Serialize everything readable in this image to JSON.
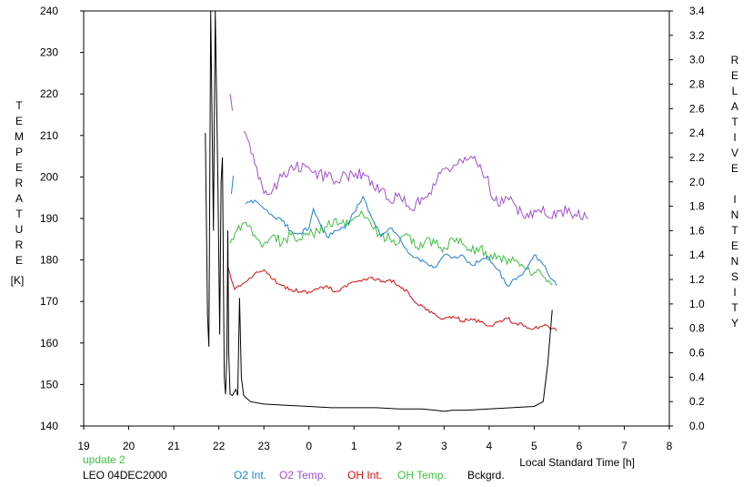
{
  "chart_data": {
    "type": "line",
    "title": "",
    "ylabel_left": "TEMPERATURE",
    "ylabel_left_unit": "[K]",
    "ylabel_right": "RELATIVE INTENSITY",
    "xlabel": "Local Standard Time [h]",
    "x_ticks": [
      19,
      20,
      21,
      22,
      23,
      0,
      1,
      2,
      3,
      4,
      5,
      6,
      7,
      8
    ],
    "x_range_hours_continuous": [
      19,
      32
    ],
    "y_left_ticks": [
      140,
      150,
      160,
      170,
      180,
      190,
      200,
      210,
      220,
      230,
      240
    ],
    "y_left_range": [
      140,
      240
    ],
    "y_right_ticks": [
      "0.0",
      "0.2",
      "0.4",
      "0.6",
      "0.8",
      "1.0",
      "1.2",
      "1.4",
      "1.6",
      "1.8",
      "2.0",
      "2.2",
      "2.4",
      "2.6",
      "2.8",
      "3.0",
      "3.2",
      "3.4"
    ],
    "y_right_range": [
      0,
      3.4
    ],
    "grid": false,
    "status_text": "update 2",
    "station_text": "LEO 04DEC2000",
    "legend_position": "bottom",
    "legend": [
      {
        "key": "o2_int",
        "label": "O2 Int.",
        "color": "#1f7fd6"
      },
      {
        "key": "o2_temp",
        "label": "O2 Temp.",
        "color": "#a050d0"
      },
      {
        "key": "oh_int",
        "label": "OH Int.",
        "color": "#d01010"
      },
      {
        "key": "oh_temp",
        "label": "OH Temp.",
        "color": "#40c040"
      },
      {
        "key": "bckgrd",
        "label": "Bckgrd.",
        "color": "#000000"
      }
    ],
    "series": [
      {
        "name": "O2 Temp.",
        "key": "o2_temp",
        "axis": "left",
        "color": "#a050d0",
        "segments": [
          [
            [
              22.25,
              220
            ],
            [
              22.3,
              216
            ]
          ],
          [
            [
              22.55,
              211
            ],
            [
              22.8,
              203
            ],
            [
              23.0,
              196
            ],
            [
              23.2,
              197
            ],
            [
              23.4,
              200
            ],
            [
              23.7,
              202
            ],
            [
              23.9,
              203
            ],
            [
              24.1,
              201
            ],
            [
              24.4,
              200
            ],
            [
              24.6,
              199
            ],
            [
              24.8,
              201
            ],
            [
              25.0,
              200
            ],
            [
              25.2,
              201
            ],
            [
              25.4,
              199
            ],
            [
              25.6,
              197
            ],
            [
              25.8,
              194
            ],
            [
              26.0,
              196
            ],
            [
              26.2,
              193
            ],
            [
              26.3,
              192
            ],
            [
              26.5,
              195
            ],
            [
              26.8,
              198
            ],
            [
              27.0,
              202
            ],
            [
              27.3,
              203
            ],
            [
              27.5,
              204
            ],
            [
              27.6,
              205
            ],
            [
              27.8,
              203
            ],
            [
              27.95,
              200
            ],
            [
              28.0,
              198
            ],
            [
              28.2,
              193
            ],
            [
              28.4,
              195
            ],
            [
              28.6,
              193
            ],
            [
              28.8,
              190
            ],
            [
              29.0,
              192
            ],
            [
              29.2,
              193
            ],
            [
              29.4,
              190
            ],
            [
              29.6,
              192
            ],
            [
              29.9,
              191
            ],
            [
              30.2,
              190
            ]
          ]
        ]
      },
      {
        "name": "OH Temp.",
        "key": "oh_temp",
        "axis": "left",
        "color": "#40c040",
        "segments": [
          [
            [
              22.25,
              184
            ],
            [
              22.4,
              187
            ],
            [
              22.6,
              189
            ],
            [
              22.8,
              186
            ],
            [
              23.0,
              184
            ],
            [
              23.2,
              186
            ],
            [
              23.4,
              184
            ],
            [
              23.6,
              186
            ],
            [
              23.8,
              185
            ],
            [
              24.0,
              186
            ],
            [
              24.2,
              187
            ],
            [
              24.4,
              188
            ],
            [
              24.6,
              190
            ],
            [
              24.8,
              188
            ],
            [
              25.0,
              190
            ],
            [
              25.2,
              191
            ],
            [
              25.4,
              188
            ],
            [
              25.6,
              186
            ],
            [
              25.8,
              185
            ],
            [
              26.0,
              184
            ],
            [
              26.2,
              186
            ],
            [
              26.4,
              183
            ],
            [
              26.6,
              185
            ],
            [
              26.8,
              184
            ],
            [
              27.0,
              183
            ],
            [
              27.2,
              185
            ],
            [
              27.4,
              184
            ],
            [
              27.6,
              182
            ],
            [
              27.8,
              183
            ],
            [
              28.0,
              180
            ],
            [
              28.2,
              181
            ],
            [
              28.4,
              179
            ],
            [
              28.6,
              180
            ],
            [
              28.8,
              178
            ],
            [
              29.0,
              177
            ],
            [
              29.2,
              176
            ],
            [
              29.4,
              174
            ]
          ]
        ]
      },
      {
        "name": "O2 Int.",
        "key": "o2_int",
        "axis": "right",
        "color": "#1f7fd6",
        "segments": [
          [
            [
              22.28,
              1.9
            ],
            [
              22.32,
              2.05
            ]
          ],
          [
            [
              22.6,
              1.82
            ],
            [
              22.8,
              1.85
            ],
            [
              23.0,
              1.78
            ],
            [
              23.2,
              1.72
            ],
            [
              23.4,
              1.68
            ],
            [
              23.6,
              1.6
            ],
            [
              23.8,
              1.58
            ],
            [
              24.0,
              1.62
            ],
            [
              24.1,
              1.78
            ],
            [
              24.2,
              1.7
            ],
            [
              24.4,
              1.55
            ],
            [
              24.6,
              1.6
            ],
            [
              24.8,
              1.62
            ],
            [
              25.0,
              1.75
            ],
            [
              25.2,
              1.88
            ],
            [
              25.4,
              1.7
            ],
            [
              25.6,
              1.55
            ],
            [
              25.8,
              1.62
            ],
            [
              26.0,
              1.55
            ],
            [
              26.2,
              1.42
            ],
            [
              26.4,
              1.38
            ],
            [
              26.6,
              1.34
            ],
            [
              26.8,
              1.3
            ],
            [
              27.0,
              1.4
            ],
            [
              27.2,
              1.38
            ],
            [
              27.4,
              1.4
            ],
            [
              27.6,
              1.32
            ],
            [
              27.8,
              1.35
            ],
            [
              28.0,
              1.38
            ],
            [
              28.2,
              1.28
            ],
            [
              28.4,
              1.15
            ],
            [
              28.6,
              1.2
            ],
            [
              28.8,
              1.28
            ],
            [
              29.0,
              1.4
            ],
            [
              29.2,
              1.32
            ],
            [
              29.4,
              1.2
            ],
            [
              29.5,
              1.15
            ]
          ]
        ]
      },
      {
        "name": "OH Int.",
        "key": "oh_int",
        "axis": "right",
        "color": "#d01010",
        "segments": [
          [
            [
              22.2,
              1.3
            ],
            [
              22.35,
              1.12
            ],
            [
              22.6,
              1.18
            ],
            [
              22.8,
              1.25
            ],
            [
              23.0,
              1.28
            ],
            [
              23.2,
              1.2
            ],
            [
              23.4,
              1.15
            ],
            [
              23.6,
              1.12
            ],
            [
              23.8,
              1.1
            ],
            [
              24.0,
              1.1
            ],
            [
              24.2,
              1.12
            ],
            [
              24.4,
              1.15
            ],
            [
              24.6,
              1.1
            ],
            [
              24.8,
              1.15
            ],
            [
              25.0,
              1.18
            ],
            [
              25.2,
              1.2
            ],
            [
              25.4,
              1.22
            ],
            [
              25.6,
              1.18
            ],
            [
              25.8,
              1.2
            ],
            [
              26.0,
              1.15
            ],
            [
              26.2,
              1.1
            ],
            [
              26.4,
              1.0
            ],
            [
              26.6,
              0.95
            ],
            [
              26.8,
              0.92
            ],
            [
              27.0,
              0.88
            ],
            [
              27.2,
              0.9
            ],
            [
              27.4,
              0.86
            ],
            [
              27.6,
              0.88
            ],
            [
              27.8,
              0.85
            ],
            [
              28.0,
              0.82
            ],
            [
              28.2,
              0.85
            ],
            [
              28.4,
              0.88
            ],
            [
              28.6,
              0.84
            ],
            [
              28.8,
              0.82
            ],
            [
              29.0,
              0.8
            ],
            [
              29.2,
              0.82
            ],
            [
              29.4,
              0.8
            ],
            [
              29.5,
              0.78
            ]
          ]
        ]
      },
      {
        "name": "Bckgrd.",
        "key": "bckgrd",
        "axis": "right",
        "color": "#000000",
        "segments": [
          [
            [
              21.7,
              2.4
            ],
            [
              21.75,
              0.9
            ],
            [
              21.78,
              0.65
            ],
            [
              21.82,
              3.4
            ],
            [
              21.88,
              1.6
            ],
            [
              21.92,
              3.4
            ],
            [
              21.98,
              2.0
            ],
            [
              22.02,
              0.75
            ],
            [
              22.05,
              2.0
            ],
            [
              22.08,
              2.2
            ],
            [
              22.12,
              0.4
            ],
            [
              22.15,
              0.26
            ],
            [
              22.18,
              0.6
            ],
            [
              22.2,
              1.6
            ],
            [
              22.22,
              0.6
            ],
            [
              22.25,
              0.26
            ],
            [
              22.3,
              0.25
            ],
            [
              22.38,
              0.3
            ],
            [
              22.42,
              0.25
            ],
            [
              22.46,
              1.05
            ],
            [
              22.5,
              0.4
            ],
            [
              22.55,
              0.25
            ],
            [
              22.7,
              0.2
            ],
            [
              23.0,
              0.18
            ],
            [
              23.5,
              0.17
            ],
            [
              24.0,
              0.16
            ],
            [
              24.5,
              0.15
            ],
            [
              25.0,
              0.15
            ],
            [
              25.5,
              0.15
            ],
            [
              26.0,
              0.14
            ],
            [
              26.5,
              0.14
            ],
            [
              26.8,
              0.13
            ],
            [
              27.0,
              0.12
            ],
            [
              27.2,
              0.13
            ],
            [
              27.5,
              0.13
            ],
            [
              28.0,
              0.14
            ],
            [
              28.5,
              0.15
            ],
            [
              29.0,
              0.16
            ],
            [
              29.2,
              0.2
            ],
            [
              29.3,
              0.5
            ],
            [
              29.4,
              0.95
            ]
          ]
        ]
      }
    ]
  }
}
